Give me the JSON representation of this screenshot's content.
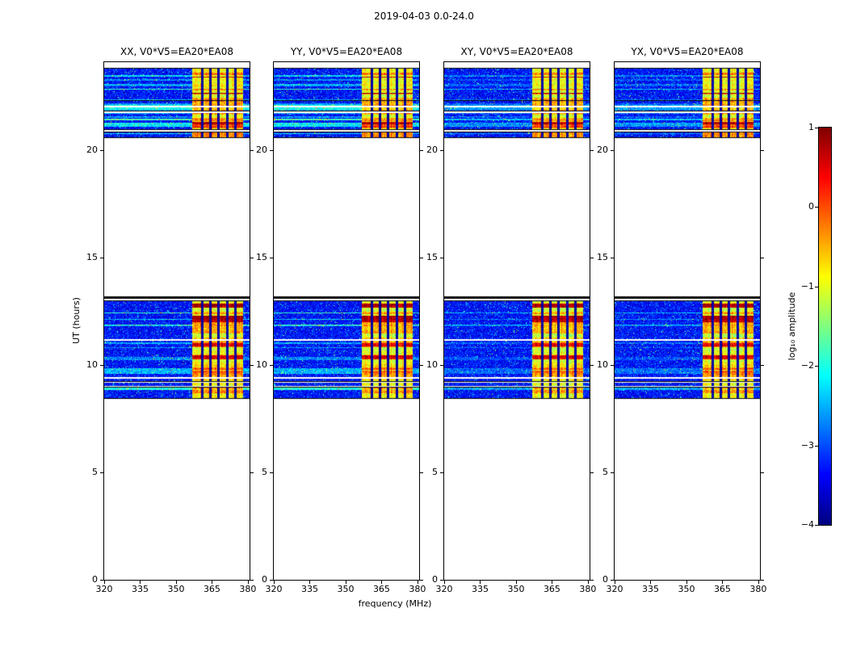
{
  "title": "2019-04-03 0.0-24.0",
  "xlabel": "frequency (MHz)",
  "ylabel": "UT (hours)",
  "panels": [
    {
      "pol": "xx",
      "title": "XX, V0*V5=EA20*EA08"
    },
    {
      "pol": "yy",
      "title": "YY, V0*V5=EA20*EA08"
    },
    {
      "pol": "xy",
      "title": "XY, V0*V5=EA20*EA08"
    },
    {
      "pol": "yx",
      "title": "YX, V0*V5=EA20*EA08"
    }
  ],
  "colorbar": {
    "label": "log₁₀ amplitude",
    "tick_labels": [
      "1",
      "0",
      "−1",
      "−2",
      "−3",
      "−4"
    ],
    "tick_values": [
      1,
      0,
      -1,
      -2,
      -3,
      -4
    ],
    "vmin": -4,
    "vmax": 1
  },
  "chart_data": {
    "type": "heatmap",
    "title": "2019-04-03 0.0-24.0",
    "xlabel": "frequency (MHz)",
    "ylabel": "UT (hours)",
    "colormap": "jet",
    "x_range": [
      320,
      380.7
    ],
    "x_ticks": [
      320,
      335,
      350,
      365,
      380
    ],
    "y_range": [
      0,
      24.1
    ],
    "y_ticks": [
      0,
      5,
      10,
      15,
      20
    ],
    "amplitude_scale_log10": [
      -4,
      1
    ],
    "time_bands_ut_hours": [
      [
        8.45,
        13.2
      ],
      [
        20.6,
        23.85
      ]
    ],
    "no_data_value": "white (outside observed time bands)",
    "noise_amplitude_log10": [
      -3.8,
      -2.9
    ],
    "rfi_freq_range_mhz": [
      356.5,
      377.8
    ],
    "rfi_amplitude_log10": [
      -1.5,
      0.5
    ],
    "rfi_dark_line_freqs_mhz": [
      360.8,
      364.2,
      367.6,
      371.2,
      374.6
    ],
    "panel_bright_mul": [
      1.0,
      1.0,
      0.55,
      0.6
    ],
    "panel_hot_mul": [
      1.0,
      0.9,
      0.85,
      0.9
    ]
  }
}
